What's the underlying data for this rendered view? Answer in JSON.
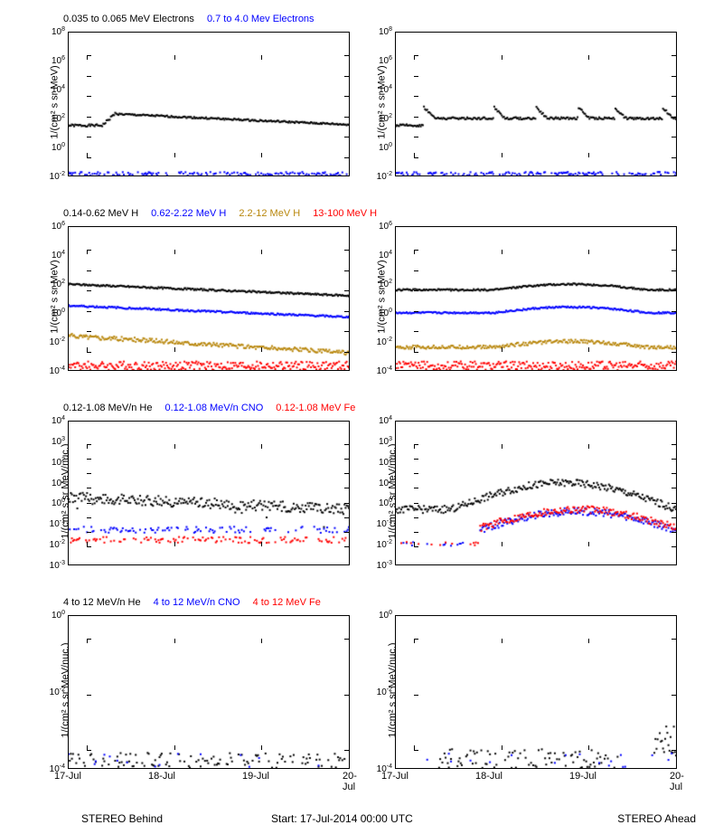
{
  "colors": {
    "black": "#000000",
    "blue": "#0000ff",
    "brown": "#b8860b",
    "red": "#ff0000",
    "bg": "#ffffff"
  },
  "typography": {
    "legend_fontsize": 11,
    "axis_fontsize": 10,
    "label_fontsize": 11
  },
  "x_axis": {
    "ticks": [
      "17-Jul",
      "18-Jul",
      "19-Jul",
      "20-Jul"
    ],
    "min": 0,
    "max": 3
  },
  "bottom": {
    "left_label": "STEREO Behind",
    "center_label": "Start: 17-Jul-2014 00:00 UTC",
    "right_label": "STEREO Ahead"
  },
  "rows": [
    {
      "ylabel": "1/(cm² s sr MeV)",
      "type": "scatter-log",
      "ylim_exp": [
        -2,
        8
      ],
      "ytick_exp": [
        -2,
        0,
        2,
        4,
        6,
        8
      ],
      "legend": [
        {
          "text": "0.035 to 0.065 MeV Electrons",
          "color": "#000000"
        },
        {
          "text": "0.7 to 4.0 Mev Electrons",
          "color": "#0000ff"
        }
      ],
      "left": {
        "series": [
          {
            "color": "#000000",
            "shape": "electron_behind_low"
          },
          {
            "color": "#0000ff",
            "shape": "noise_floor",
            "level": -2,
            "spread": 0.25
          }
        ]
      },
      "right": {
        "series": [
          {
            "color": "#000000",
            "shape": "electron_ahead_low"
          },
          {
            "color": "#0000ff",
            "shape": "noise_floor",
            "level": -2,
            "spread": 0.25
          }
        ]
      }
    },
    {
      "ylabel": "1/(cm² s sr MeV)",
      "type": "scatter-log",
      "ylim_exp": [
        -4,
        6
      ],
      "ytick_exp": [
        -4,
        -2,
        0,
        2,
        4,
        6
      ],
      "legend": [
        {
          "text": "0.14-0.62 MeV H",
          "color": "#000000"
        },
        {
          "text": "0.62-2.22 MeV H",
          "color": "#0000ff"
        },
        {
          "text": "2.2-12 MeV H",
          "color": "#b8860b"
        },
        {
          "text": "13-100 MeV H",
          "color": "#ff0000"
        }
      ],
      "left": {
        "series": [
          {
            "color": "#000000",
            "shape": "line_decay",
            "start": 2.0,
            "end": 1.2
          },
          {
            "color": "#0000ff",
            "shape": "line_decay",
            "start": 0.5,
            "end": -0.3
          },
          {
            "color": "#b8860b",
            "shape": "line_decay",
            "start": -1.6,
            "end": -2.8,
            "spread": 0.15
          },
          {
            "color": "#ff0000",
            "shape": "noise_floor",
            "level": -3.7,
            "spread": 0.3
          }
        ]
      },
      "right": {
        "series": [
          {
            "color": "#000000",
            "shape": "line_bump",
            "base": 1.6,
            "bump": 0.4
          },
          {
            "color": "#0000ff",
            "shape": "line_bump",
            "base": 0.0,
            "bump": 0.4
          },
          {
            "color": "#b8860b",
            "shape": "line_bump",
            "base": -2.4,
            "bump": 0.4,
            "spread": 0.12
          },
          {
            "color": "#ff0000",
            "shape": "noise_floor",
            "level": -3.7,
            "spread": 0.3
          }
        ]
      }
    },
    {
      "ylabel": "1/(cm² s sr MeV/nuc.)",
      "type": "scatter-log",
      "ylim_exp": [
        -3,
        4
      ],
      "ytick_exp": [
        -3,
        -2,
        -1,
        0,
        1,
        2,
        3,
        4
      ],
      "legend": [
        {
          "text": "0.12-1.08 MeV/n He",
          "color": "#000000"
        },
        {
          "text": "0.12-1.08 MeV/n CNO",
          "color": "#0000ff"
        },
        {
          "text": "0.12-1.08 MeV Fe",
          "color": "#ff0000"
        }
      ],
      "left": {
        "series": [
          {
            "color": "#000000",
            "shape": "he_behind"
          },
          {
            "color": "#0000ff",
            "shape": "sparse_line",
            "level": -1.3
          },
          {
            "color": "#ff0000",
            "shape": "sparse_line",
            "level": -1.8
          }
        ]
      },
      "right": {
        "series": [
          {
            "color": "#000000",
            "shape": "he_ahead"
          },
          {
            "color": "#0000ff",
            "shape": "fe_ahead",
            "offset": -0.1
          },
          {
            "color": "#ff0000",
            "shape": "fe_ahead"
          }
        ]
      }
    },
    {
      "ylabel": "1/(cm² s sr MeV/nuc.)",
      "type": "scatter-log",
      "ylim_exp": [
        -4,
        0
      ],
      "ytick_exp": [
        -4,
        -2,
        0
      ],
      "legend": [
        {
          "text": "4 to 12 MeV/n He",
          "color": "#000000"
        },
        {
          "text": "4 to 12 MeV/n CNO",
          "color": "#0000ff"
        },
        {
          "text": "4 to 12 MeV Fe",
          "color": "#ff0000"
        }
      ],
      "left": {
        "series": [
          {
            "color": "#000000",
            "shape": "sparse_bottom",
            "density": 0.5
          },
          {
            "color": "#0000ff",
            "shape": "sparse_bottom",
            "density": 0.05
          }
        ]
      },
      "right": {
        "series": [
          {
            "color": "#000000",
            "shape": "sparse_bottom_ahead"
          },
          {
            "color": "#0000ff",
            "shape": "sparse_bottom",
            "density": 0.05
          }
        ]
      }
    }
  ]
}
